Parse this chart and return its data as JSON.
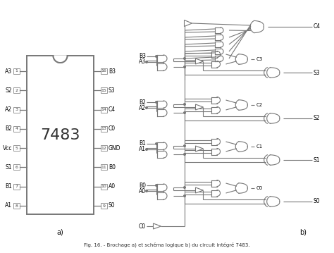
{
  "caption": "Fig. 16. - Brochage a) et schéma logique b) du circuit intégré 7483.",
  "bg_color": "#ffffff",
  "ic_label": "7483",
  "left_pins": [
    {
      "num": 1,
      "name": "A3"
    },
    {
      "num": 2,
      "name": "S2"
    },
    {
      "num": 3,
      "name": "A2"
    },
    {
      "num": 4,
      "name": "B2"
    },
    {
      "num": 5,
      "name": "Vcc"
    },
    {
      "num": 6,
      "name": "S1"
    },
    {
      "num": 7,
      "name": "B1"
    },
    {
      "num": 8,
      "name": "A1"
    }
  ],
  "right_pins": [
    {
      "num": 16,
      "name": "B3"
    },
    {
      "num": 15,
      "name": "S3"
    },
    {
      "num": 14,
      "name": "C4"
    },
    {
      "num": 13,
      "name": "C0"
    },
    {
      "num": 12,
      "name": "GND"
    },
    {
      "num": 11,
      "name": "B0"
    },
    {
      "num": 10,
      "name": "A0"
    },
    {
      "num": 9,
      "name": "S0"
    }
  ],
  "label_a": "a)",
  "label_b": "b)",
  "line_color": "#777777",
  "text_color": "#000000",
  "figsize": [
    4.74,
    3.59
  ],
  "dpi": 100
}
